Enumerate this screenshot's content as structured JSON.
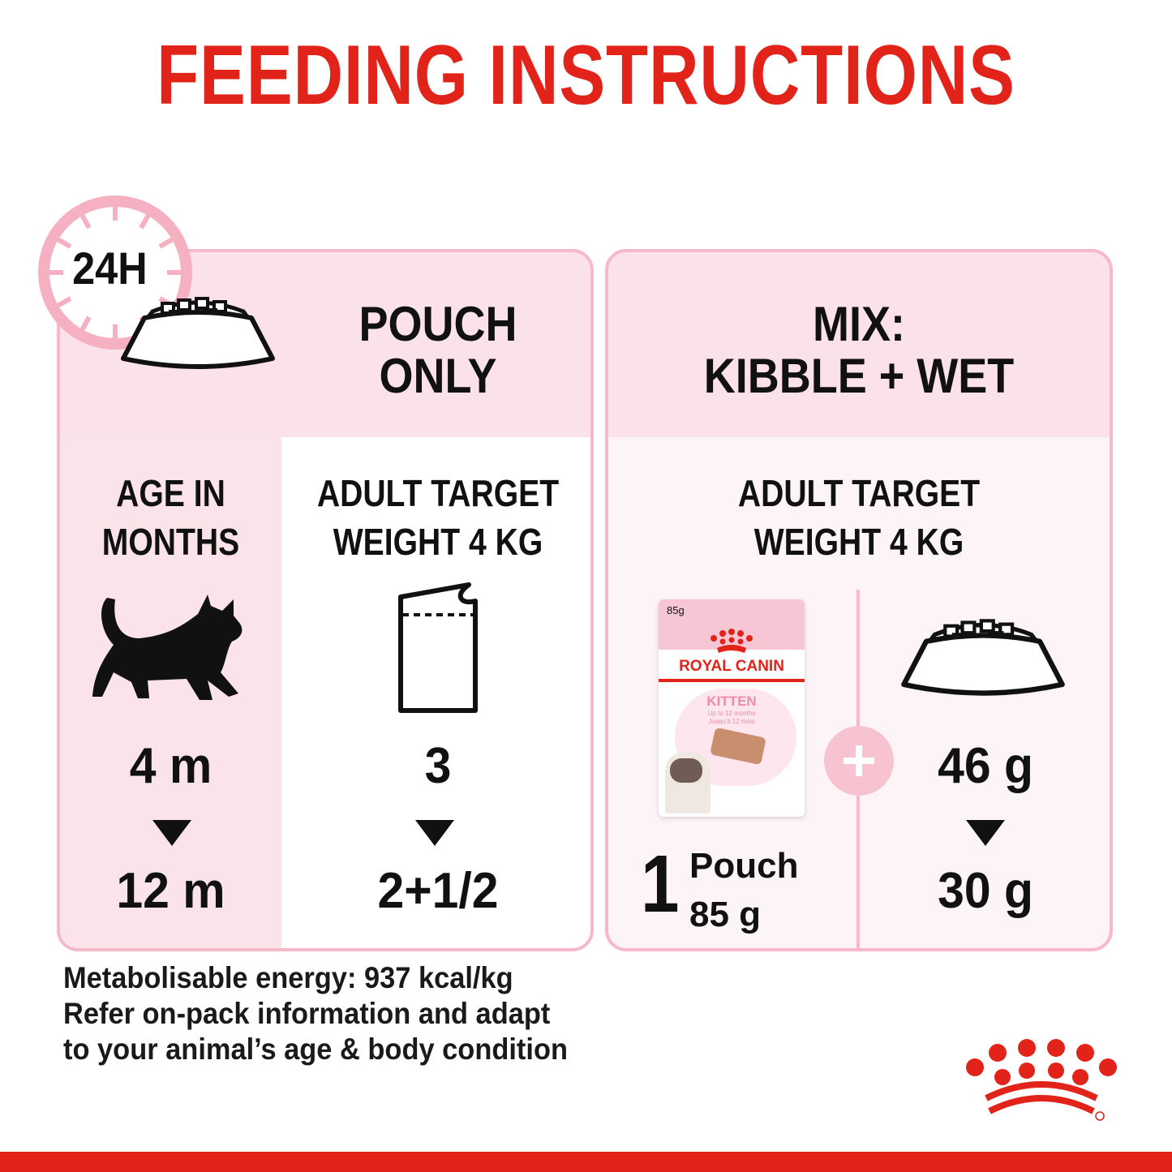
{
  "title": "FEEDING INSTRUCTIONS",
  "clock_label": "24H",
  "pouch_only": {
    "heading_line1": "POUCH",
    "heading_line2": "ONLY",
    "age_label_line1": "AGE IN",
    "age_label_line2": "MONTHS",
    "weight_label_line1": "ADULT TARGET",
    "weight_label_line2": "WEIGHT 4 KG",
    "age_from": "4 m",
    "age_to": "12 m",
    "pouches_from": "3",
    "pouches_to": "2+1/2"
  },
  "mix": {
    "heading_line1": "MIX:",
    "heading_line2": "KIBBLE + WET",
    "weight_label_line1": "ADULT TARGET",
    "weight_label_line2": "WEIGHT 4 KG",
    "pouch_count": "1",
    "pouch_word": "Pouch",
    "pouch_weight": "85 g",
    "kibble_from": "46 g",
    "kibble_to": "30 g",
    "product": {
      "weight": "85g",
      "brand": "ROYAL CANIN",
      "name": "KITTEN",
      "sub1": "Up to 12 months",
      "sub2": "Jusqu'à 12 mois"
    }
  },
  "footer": {
    "line1": "Metabolisable energy: 937 kcal/kg",
    "line2": "Refer on-pack information and adapt",
    "line3": "to your animal’s age & body condition"
  },
  "colors": {
    "brand_red": "#e2231a",
    "pink": "#f5b9c9",
    "light_pink": "#fbe1e9"
  }
}
